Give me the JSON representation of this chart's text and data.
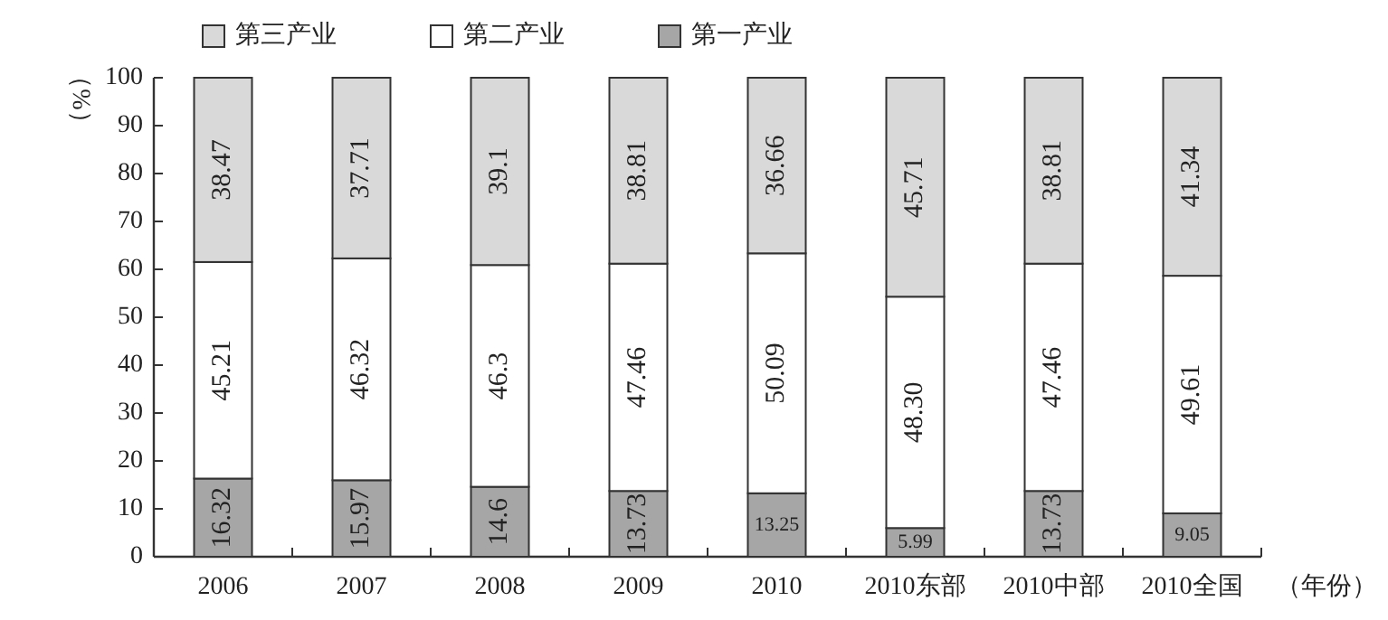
{
  "chart_data": {
    "type": "bar",
    "stacked": true,
    "ylabel": "（%）",
    "xlabel": "（年份）",
    "legend": "top",
    "categories": [
      "2006",
      "2007",
      "2008",
      "2009",
      "2010",
      "2010东部",
      "2010中部",
      "2010全国"
    ],
    "ylim": [
      0,
      100
    ],
    "yticks": [
      0,
      10,
      20,
      30,
      40,
      50,
      60,
      70,
      80,
      90,
      100
    ],
    "series": [
      {
        "name": "第一产业",
        "color": "#a6a6a6",
        "values": [
          16.32,
          15.97,
          14.6,
          13.73,
          13.25,
          5.99,
          13.73,
          9.05
        ],
        "value_labels": [
          "16.32",
          "15.97",
          "14.6",
          "13.73",
          "13.25",
          "5.99",
          "13.73",
          "9.05"
        ]
      },
      {
        "name": "第二产业",
        "color": "#ffffff",
        "values": [
          45.21,
          46.32,
          46.3,
          47.46,
          50.09,
          48.3,
          47.46,
          49.61
        ],
        "value_labels": [
          "45.21",
          "46.32",
          "46.3",
          "47.46",
          "50.09",
          "48.30",
          "47.46",
          "49.61"
        ]
      },
      {
        "name": "第三产业",
        "color": "#d9d9d9",
        "values": [
          38.47,
          37.71,
          39.1,
          38.81,
          36.66,
          45.71,
          38.81,
          41.34
        ],
        "value_labels": [
          "38.47",
          "37.71",
          "39.1",
          "38.81",
          "36.66",
          "45.71",
          "38.81",
          "41.34"
        ]
      }
    ]
  }
}
